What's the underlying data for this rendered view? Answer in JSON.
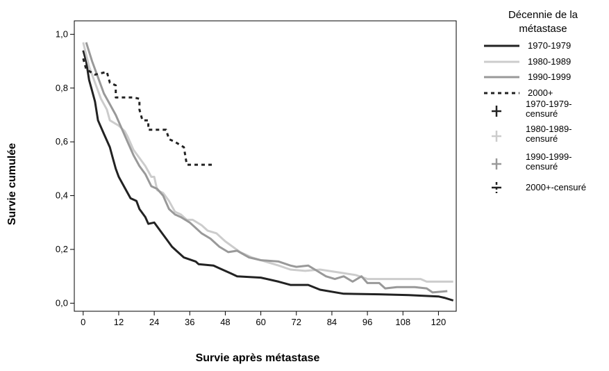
{
  "chart_data": {
    "type": "line",
    "xlabel": "Survie après métastase",
    "ylabel": "Survie cumulée",
    "xlim": [
      -3,
      126
    ],
    "ylim": [
      -0.03,
      1.05
    ],
    "x_ticks": [
      0,
      12,
      24,
      36,
      48,
      60,
      72,
      84,
      96,
      108,
      120
    ],
    "y_ticks": [
      {
        "value": 0.0,
        "label": "0,0"
      },
      {
        "value": 0.2,
        "label": "0,2"
      },
      {
        "value": 0.4,
        "label": "0,4"
      },
      {
        "value": 0.6,
        "label": "0,6"
      },
      {
        "value": 0.8,
        "label": "0,8"
      },
      {
        "value": 1.0,
        "label": "1,0"
      }
    ],
    "grid": false,
    "legend_title": "Décennie de la métastase",
    "legend_title_lines": [
      "Décennie de la",
      "métastase"
    ],
    "legend_position": "right",
    "series": [
      {
        "name": "1970-1979",
        "color": "#222222",
        "dash": "solid",
        "points": [
          [
            0,
            0.94
          ],
          [
            1,
            0.9
          ],
          [
            2,
            0.83
          ],
          [
            3,
            0.79
          ],
          [
            4,
            0.75
          ],
          [
            5,
            0.68
          ],
          [
            7,
            0.63
          ],
          [
            9,
            0.58
          ],
          [
            10,
            0.54
          ],
          [
            11,
            0.5
          ],
          [
            12,
            0.47
          ],
          [
            14,
            0.43
          ],
          [
            16,
            0.39
          ],
          [
            18,
            0.38
          ],
          [
            19,
            0.35
          ],
          [
            21,
            0.32
          ],
          [
            22,
            0.295
          ],
          [
            24,
            0.3
          ],
          [
            26,
            0.27
          ],
          [
            28,
            0.24
          ],
          [
            30,
            0.21
          ],
          [
            32,
            0.19
          ],
          [
            34,
            0.17
          ],
          [
            38,
            0.155
          ],
          [
            39,
            0.145
          ],
          [
            44,
            0.14
          ],
          [
            46,
            0.13
          ],
          [
            50,
            0.11
          ],
          [
            52,
            0.1
          ],
          [
            60,
            0.095
          ],
          [
            66,
            0.08
          ],
          [
            70,
            0.068
          ],
          [
            76,
            0.068
          ],
          [
            80,
            0.05
          ],
          [
            88,
            0.035
          ],
          [
            100,
            0.033
          ],
          [
            110,
            0.03
          ],
          [
            120,
            0.025
          ],
          [
            122,
            0.02
          ],
          [
            125,
            0.01
          ]
        ]
      },
      {
        "name": "1980-1989",
        "color": "#cccccc",
        "dash": "solid",
        "points": [
          [
            0,
            0.97
          ],
          [
            2,
            0.88
          ],
          [
            4,
            0.82
          ],
          [
            6,
            0.76
          ],
          [
            8,
            0.72
          ],
          [
            9,
            0.68
          ],
          [
            12,
            0.66
          ],
          [
            14,
            0.64
          ],
          [
            15,
            0.62
          ],
          [
            17,
            0.57
          ],
          [
            19,
            0.54
          ],
          [
            21,
            0.51
          ],
          [
            23,
            0.47
          ],
          [
            24,
            0.47
          ],
          [
            25,
            0.42
          ],
          [
            27,
            0.41
          ],
          [
            29,
            0.38
          ],
          [
            31,
            0.34
          ],
          [
            33,
            0.33
          ],
          [
            35,
            0.31
          ],
          [
            37,
            0.31
          ],
          [
            40,
            0.29
          ],
          [
            42,
            0.27
          ],
          [
            45,
            0.26
          ],
          [
            48,
            0.23
          ],
          [
            53,
            0.19
          ],
          [
            57,
            0.17
          ],
          [
            60,
            0.16
          ],
          [
            66,
            0.14
          ],
          [
            70,
            0.125
          ],
          [
            75,
            0.12
          ],
          [
            80,
            0.125
          ],
          [
            86,
            0.115
          ],
          [
            92,
            0.105
          ],
          [
            96,
            0.09
          ],
          [
            100,
            0.09
          ],
          [
            114,
            0.09
          ],
          [
            116,
            0.08
          ],
          [
            120,
            0.08
          ],
          [
            125,
            0.08
          ]
        ]
      },
      {
        "name": "1990-1999",
        "color": "#999999",
        "dash": "solid",
        "points": [
          [
            1,
            0.97
          ],
          [
            3,
            0.9
          ],
          [
            5,
            0.84
          ],
          [
            7,
            0.78
          ],
          [
            9,
            0.74
          ],
          [
            11,
            0.7
          ],
          [
            13,
            0.65
          ],
          [
            15,
            0.6
          ],
          [
            17,
            0.55
          ],
          [
            19,
            0.51
          ],
          [
            21,
            0.48
          ],
          [
            23,
            0.435
          ],
          [
            25,
            0.425
          ],
          [
            27,
            0.4
          ],
          [
            29,
            0.35
          ],
          [
            31,
            0.33
          ],
          [
            33,
            0.32
          ],
          [
            36,
            0.3
          ],
          [
            38,
            0.28
          ],
          [
            40,
            0.26
          ],
          [
            43,
            0.24
          ],
          [
            46,
            0.21
          ],
          [
            49,
            0.19
          ],
          [
            52,
            0.195
          ],
          [
            56,
            0.17
          ],
          [
            60,
            0.16
          ],
          [
            66,
            0.155
          ],
          [
            70,
            0.14
          ],
          [
            72,
            0.135
          ],
          [
            76,
            0.14
          ],
          [
            79,
            0.12
          ],
          [
            82,
            0.1
          ],
          [
            85,
            0.09
          ],
          [
            88,
            0.1
          ],
          [
            91,
            0.08
          ],
          [
            94,
            0.1
          ],
          [
            96,
            0.075
          ],
          [
            100,
            0.075
          ],
          [
            102,
            0.055
          ],
          [
            106,
            0.06
          ],
          [
            112,
            0.06
          ],
          [
            116,
            0.055
          ],
          [
            118,
            0.04
          ],
          [
            123,
            0.045
          ]
        ]
      },
      {
        "name": "2000+",
        "color": "#222222",
        "dash": "dashed",
        "points": [
          [
            0,
            0.91
          ],
          [
            1,
            0.87
          ],
          [
            4,
            0.85
          ],
          [
            8,
            0.86
          ],
          [
            9,
            0.82
          ],
          [
            11,
            0.81
          ],
          [
            11,
            0.765
          ],
          [
            17,
            0.765
          ],
          [
            19,
            0.76
          ],
          [
            19,
            0.72
          ],
          [
            20,
            0.68
          ],
          [
            22,
            0.68
          ],
          [
            22,
            0.645
          ],
          [
            28,
            0.645
          ],
          [
            29,
            0.61
          ],
          [
            31,
            0.6
          ],
          [
            34,
            0.58
          ],
          [
            35,
            0.515
          ],
          [
            44,
            0.515
          ]
        ]
      },
      {
        "name": "1970-1979-censuré",
        "name_lines": [
          "1970-1979-",
          "censuré"
        ],
        "color": "#222222",
        "dash": "solid",
        "marker": "plus",
        "points": []
      },
      {
        "name": "1980-1989-censuré",
        "name_lines": [
          "1980-1989-",
          "censuré"
        ],
        "color": "#cccccc",
        "dash": "solid",
        "marker": "plus",
        "points": []
      },
      {
        "name": "1990-1999-censuré",
        "name_lines": [
          "1990-1999-",
          "censuré"
        ],
        "color": "#999999",
        "dash": "solid",
        "marker": "plus",
        "points": []
      },
      {
        "name": "2000+-censuré",
        "name_lines": [
          "2000+-censuré"
        ],
        "color": "#222222",
        "dash": "dashed",
        "marker": "plus",
        "points": []
      }
    ]
  }
}
